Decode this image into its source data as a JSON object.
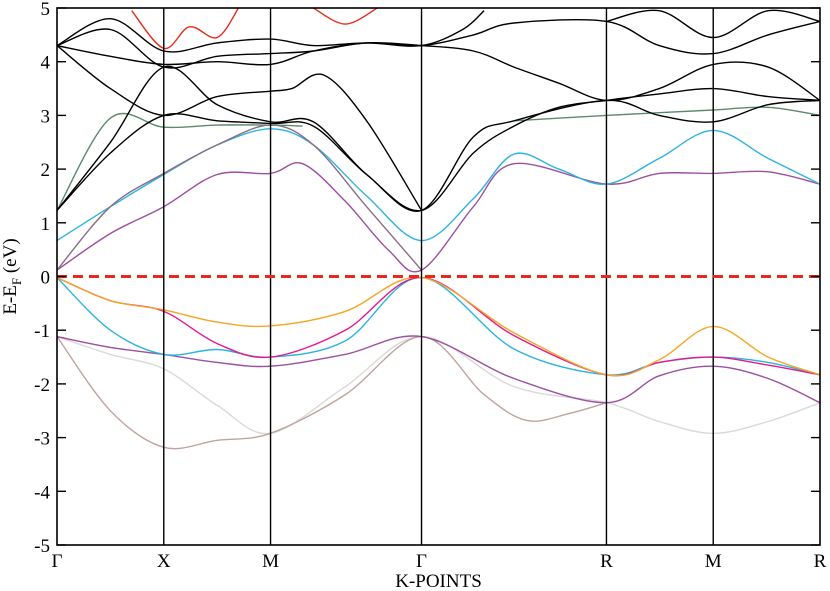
{
  "chart_data": {
    "type": "line",
    "title": "",
    "xlabel": "K-POINTS",
    "ylabel": "E-E_F (eV)",
    "ylabel_main": "E-E",
    "ylabel_sub": "F",
    "ylabel_unit": " (eV)",
    "ylim": [
      -5,
      5
    ],
    "y_ticks": [
      "-5",
      "-4",
      "-3",
      "-2",
      "-1",
      "0",
      "1",
      "2",
      "3",
      "4",
      "5"
    ],
    "k_points": [
      {
        "label": "Γ",
        "x": 0.0
      },
      {
        "label": "X",
        "x": 0.5
      },
      {
        "label": "M",
        "x": 1.0
      },
      {
        "label": "Γ",
        "x": 1.707
      },
      {
        "label": "R",
        "x": 2.573
      },
      {
        "label": "M",
        "x": 3.073
      },
      {
        "label": "R",
        "x": 3.573
      }
    ],
    "xlim": [
      0,
      3.573
    ],
    "fermi_level": {
      "y": 0,
      "color": "#e8291c",
      "style": "dashed"
    },
    "grid": false,
    "series": [
      {
        "color": "#d9d9d9",
        "points": [
          [
            0,
            -1.12
          ],
          [
            0.25,
            -1.45
          ],
          [
            0.5,
            -1.72
          ],
          [
            0.75,
            -2.4
          ],
          [
            1.0,
            -2.92
          ],
          [
            1.35,
            -2.05
          ],
          [
            1.707,
            -1.12
          ],
          [
            2.14,
            -2.05
          ],
          [
            2.573,
            -2.35
          ],
          [
            2.82,
            -2.7
          ],
          [
            3.073,
            -2.92
          ],
          [
            3.33,
            -2.7
          ],
          [
            3.573,
            -2.35
          ]
        ]
      },
      {
        "color": "#bfa49e",
        "points": [
          [
            0,
            -1.12
          ],
          [
            0.25,
            -2.5
          ],
          [
            0.5,
            -3.18
          ],
          [
            0.75,
            -3.05
          ],
          [
            1.0,
            -2.92
          ],
          [
            1.35,
            -2.2
          ],
          [
            1.707,
            -1.12
          ],
          [
            2.0,
            -2.2
          ],
          [
            2.2,
            -2.68
          ],
          [
            2.4,
            -2.55
          ],
          [
            2.573,
            -2.35
          ]
        ]
      },
      {
        "color": "#9d4fa0",
        "points": [
          [
            0,
            -1.12
          ],
          [
            0.25,
            -1.32
          ],
          [
            0.5,
            -1.45
          ],
          [
            0.75,
            -1.6
          ],
          [
            1.0,
            -1.67
          ],
          [
            1.35,
            -1.45
          ],
          [
            1.707,
            -1.12
          ],
          [
            2.14,
            -1.9
          ],
          [
            2.573,
            -2.35
          ],
          [
            2.82,
            -1.85
          ],
          [
            3.073,
            -1.67
          ],
          [
            3.33,
            -1.9
          ],
          [
            3.573,
            -2.35
          ]
        ]
      },
      {
        "color": "#2ab4e0",
        "points": [
          [
            0,
            -0.02
          ],
          [
            0.25,
            -1.0
          ],
          [
            0.5,
            -1.45
          ],
          [
            0.75,
            -1.36
          ],
          [
            1.0,
            -1.5
          ],
          [
            1.35,
            -1.2
          ],
          [
            1.707,
            -0.02
          ],
          [
            2.14,
            -1.35
          ],
          [
            2.573,
            -1.83
          ],
          [
            2.82,
            -1.6
          ],
          [
            3.073,
            -1.5
          ],
          [
            3.33,
            -1.6
          ],
          [
            3.573,
            -1.83
          ]
        ]
      },
      {
        "color": "#e6188f",
        "points": [
          [
            0,
            -0.02
          ],
          [
            0.25,
            -0.45
          ],
          [
            0.5,
            -0.65
          ],
          [
            0.75,
            -1.25
          ],
          [
            1.0,
            -1.5
          ],
          [
            1.35,
            -1.0
          ],
          [
            1.707,
            -0.02
          ],
          [
            2.14,
            -1.1
          ],
          [
            2.573,
            -1.83
          ],
          [
            2.82,
            -1.6
          ],
          [
            3.073,
            -1.5
          ],
          [
            3.33,
            -1.65
          ],
          [
            3.573,
            -1.83
          ]
        ]
      },
      {
        "color": "#f5a623",
        "points": [
          [
            0,
            -0.02
          ],
          [
            0.25,
            -0.45
          ],
          [
            0.5,
            -0.62
          ],
          [
            0.75,
            -0.85
          ],
          [
            1.0,
            -0.92
          ],
          [
            1.35,
            -0.65
          ],
          [
            1.707,
            -0.02
          ],
          [
            2.14,
            -1.05
          ],
          [
            2.573,
            -1.83
          ],
          [
            2.82,
            -1.55
          ],
          [
            3.073,
            -0.93
          ],
          [
            3.33,
            -1.5
          ],
          [
            3.573,
            -1.83
          ]
        ]
      },
      {
        "color": "#9d4fa0",
        "points": [
          [
            0,
            0.12
          ],
          [
            0.25,
            0.8
          ],
          [
            0.5,
            1.3
          ],
          [
            0.75,
            1.9
          ],
          [
            1.0,
            1.92
          ],
          [
            1.15,
            2.1
          ],
          [
            1.35,
            1.4
          ],
          [
            1.55,
            0.5
          ],
          [
            1.707,
            0.12
          ],
          [
            1.95,
            1.3
          ],
          [
            2.14,
            2.1
          ],
          [
            2.573,
            1.72
          ],
          [
            2.82,
            1.92
          ],
          [
            3.073,
            1.92
          ],
          [
            3.33,
            1.95
          ],
          [
            3.573,
            1.72
          ]
        ]
      },
      {
        "color": "#2ab4e0",
        "points": [
          [
            0,
            0.67
          ],
          [
            0.25,
            1.3
          ],
          [
            0.5,
            1.9
          ],
          [
            0.75,
            2.45
          ],
          [
            1.0,
            2.75
          ],
          [
            1.2,
            2.45
          ],
          [
            1.45,
            1.5
          ],
          [
            1.707,
            0.67
          ],
          [
            1.95,
            1.45
          ],
          [
            2.14,
            2.28
          ],
          [
            2.35,
            2.0
          ],
          [
            2.573,
            1.72
          ],
          [
            2.82,
            2.2
          ],
          [
            3.073,
            2.72
          ],
          [
            3.33,
            2.2
          ],
          [
            3.573,
            1.72
          ]
        ]
      },
      {
        "color": "#8a6c84",
        "points": [
          [
            0,
            0.12
          ],
          [
            0.25,
            1.3
          ],
          [
            0.5,
            1.92
          ],
          [
            0.75,
            2.45
          ],
          [
            1.0,
            2.82
          ],
          [
            1.2,
            2.45
          ],
          [
            1.45,
            1.3
          ],
          [
            1.707,
            0.12
          ]
        ]
      },
      {
        "color": "#5c8a6e",
        "points": [
          [
            0,
            1.23
          ],
          [
            0.25,
            2.95
          ],
          [
            0.5,
            2.78
          ],
          [
            0.75,
            2.82
          ],
          [
            1.0,
            2.82
          ],
          [
            1.15,
            2.8
          ]
        ]
      },
      {
        "color": "#5c8a6e",
        "points": [
          [
            2.14,
            2.9
          ],
          [
            2.573,
            3.0
          ],
          [
            2.82,
            3.05
          ],
          [
            3.073,
            3.1
          ],
          [
            3.33,
            3.15
          ],
          [
            3.573,
            3.0
          ]
        ]
      },
      {
        "color": "#000000",
        "points": [
          [
            0,
            1.23
          ],
          [
            0.25,
            2.3
          ],
          [
            0.5,
            3.0
          ],
          [
            0.75,
            2.9
          ],
          [
            1.0,
            2.85
          ],
          [
            1.2,
            2.8
          ],
          [
            1.45,
            1.9
          ],
          [
            1.707,
            1.23
          ],
          [
            1.95,
            2.6
          ],
          [
            2.14,
            2.9
          ],
          [
            2.573,
            3.28
          ],
          [
            2.82,
            3.0
          ],
          [
            3.073,
            2.88
          ],
          [
            3.33,
            3.2
          ],
          [
            3.573,
            3.28
          ]
        ]
      },
      {
        "color": "#000000",
        "points": [
          [
            0,
            1.23
          ],
          [
            0.25,
            2.5
          ],
          [
            0.5,
            3.9
          ],
          [
            0.75,
            3.2
          ],
          [
            1.0,
            2.88
          ],
          [
            1.2,
            2.88
          ],
          [
            1.45,
            1.9
          ],
          [
            1.707,
            1.23
          ],
          [
            1.95,
            2.3
          ],
          [
            2.14,
            2.8
          ],
          [
            2.35,
            3.15
          ],
          [
            2.573,
            3.28
          ],
          [
            2.82,
            3.4
          ],
          [
            3.073,
            3.5
          ],
          [
            3.33,
            3.35
          ],
          [
            3.573,
            3.28
          ]
        ]
      },
      {
        "color": "#000000",
        "points": [
          [
            0,
            4.3
          ],
          [
            0.25,
            3.5
          ],
          [
            0.5,
            3.0
          ],
          [
            0.75,
            3.35
          ],
          [
            1.0,
            3.45
          ],
          [
            1.1,
            3.5
          ],
          [
            1.25,
            3.75
          ],
          [
            1.45,
            2.9
          ],
          [
            1.707,
            1.23
          ]
        ]
      },
      {
        "color": "#000000",
        "points": [
          [
            0,
            4.3
          ],
          [
            0.25,
            4.6
          ],
          [
            0.5,
            3.9
          ],
          [
            0.75,
            4.1
          ],
          [
            1.0,
            4.15
          ],
          [
            1.2,
            4.2
          ],
          [
            1.45,
            4.35
          ],
          [
            1.707,
            4.3
          ],
          [
            1.95,
            4.5
          ],
          [
            2.14,
            4.72
          ],
          [
            2.573,
            4.75
          ],
          [
            2.82,
            4.3
          ],
          [
            3.073,
            4.15
          ],
          [
            3.33,
            4.5
          ],
          [
            3.573,
            4.75
          ]
        ]
      },
      {
        "color": "#000000",
        "points": [
          [
            0,
            4.3
          ],
          [
            0.25,
            4.1
          ],
          [
            0.5,
            3.95
          ],
          [
            0.75,
            4.0
          ],
          [
            1.0,
            3.95
          ],
          [
            1.2,
            4.2
          ],
          [
            1.45,
            4.35
          ],
          [
            1.707,
            4.3
          ],
          [
            1.95,
            4.2
          ],
          [
            2.14,
            3.9
          ],
          [
            2.35,
            3.6
          ],
          [
            2.573,
            3.28
          ],
          [
            2.82,
            3.5
          ],
          [
            3.073,
            3.95
          ],
          [
            3.33,
            3.9
          ],
          [
            3.573,
            3.28
          ]
        ]
      },
      {
        "color": "#000000",
        "points": [
          [
            0,
            4.3
          ],
          [
            0.25,
            4.8
          ],
          [
            0.5,
            4.2
          ],
          [
            0.75,
            4.35
          ],
          [
            1.0,
            4.42
          ],
          [
            1.2,
            4.3
          ],
          [
            1.45,
            4.35
          ],
          [
            1.707,
            4.3
          ],
          [
            1.9,
            4.6
          ],
          [
            2.0,
            4.95
          ]
        ]
      },
      {
        "color": "#000000",
        "points": [
          [
            2.573,
            4.75
          ],
          [
            2.82,
            4.95
          ],
          [
            3.073,
            4.45
          ],
          [
            3.33,
            4.95
          ],
          [
            3.573,
            4.75
          ]
        ]
      },
      {
        "color": "#e8291c",
        "points": [
          [
            0.35,
            4.95
          ],
          [
            0.5,
            4.25
          ],
          [
            0.62,
            4.65
          ],
          [
            0.75,
            4.45
          ],
          [
            0.85,
            5.0
          ]
        ]
      },
      {
        "color": "#e8291c",
        "points": [
          [
            1.2,
            5.0
          ],
          [
            1.35,
            4.7
          ],
          [
            1.5,
            5.0
          ]
        ]
      }
    ]
  }
}
